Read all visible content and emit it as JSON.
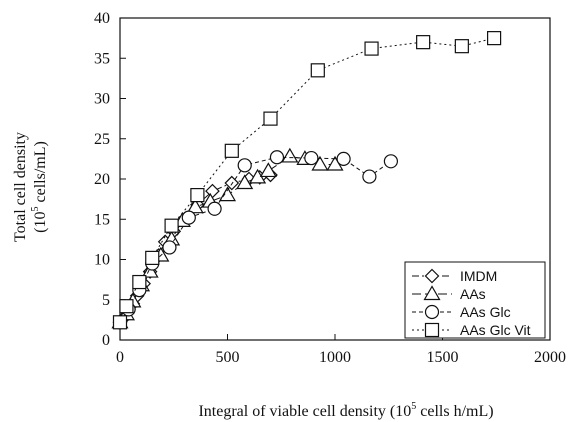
{
  "chart_data": {
    "type": "line",
    "xlabel_main": "Integral of viable cell density (10",
    "xlabel_sup": "5",
    "xlabel_tail": " cells h/mL)",
    "ylabel_line1": "Total cell density",
    "ylabel_line2_main": "(10",
    "ylabel_line2_sup": "5",
    "ylabel_line2_tail": " cells/mL)",
    "xlim": [
      0,
      2000
    ],
    "ylim": [
      0,
      40
    ],
    "xticks": [
      0,
      500,
      1000,
      1500,
      2000
    ],
    "yticks": [
      0,
      5,
      10,
      15,
      20,
      25,
      30,
      35,
      40
    ],
    "grid": false,
    "legend_position": "bottom-right",
    "series": [
      {
        "name": "IMDM",
        "marker": "diamond",
        "line": "dash-dot",
        "x": [
          0,
          20,
          40,
          60,
          80,
          110,
          140,
          180,
          210,
          250,
          300,
          360,
          430,
          520,
          600,
          650,
          700
        ],
        "y": [
          2.2,
          2.8,
          3.8,
          4.5,
          5.5,
          7.0,
          8.5,
          10.5,
          12.2,
          13.5,
          15.0,
          16.8,
          18.5,
          19.5,
          20.0,
          20.2,
          20.5
        ]
      },
      {
        "name": "AAs",
        "marker": "triangle",
        "line": "long-dash",
        "x": [
          0,
          30,
          60,
          100,
          140,
          190,
          240,
          290,
          350,
          420,
          500,
          580,
          640,
          690,
          790,
          860,
          930,
          1000
        ],
        "y": [
          2.2,
          3.2,
          4.8,
          6.8,
          8.5,
          10.5,
          12.5,
          14.8,
          16.5,
          17.2,
          18.0,
          19.5,
          20.2,
          21.0,
          22.8,
          22.5,
          21.8,
          21.8
        ]
      },
      {
        "name": "AAs Glc",
        "marker": "circle",
        "line": "dashed",
        "x": [
          0,
          40,
          90,
          150,
          230,
          320,
          440,
          580,
          730,
          890,
          1040,
          1160,
          1260
        ],
        "y": [
          2.2,
          3.8,
          6.2,
          9.5,
          11.5,
          15.2,
          16.3,
          21.7,
          22.7,
          22.6,
          22.5,
          20.3,
          22.2
        ]
      },
      {
        "name": "AAs Glc Vit",
        "marker": "square",
        "line": "dotted",
        "x": [
          0,
          30,
          90,
          150,
          240,
          360,
          520,
          700,
          920,
          1170,
          1410,
          1590,
          1740
        ],
        "y": [
          2.2,
          4.2,
          7.2,
          10.2,
          14.2,
          18.0,
          23.5,
          27.5,
          33.5,
          36.2,
          37.0,
          36.5,
          37.5
        ]
      }
    ]
  }
}
